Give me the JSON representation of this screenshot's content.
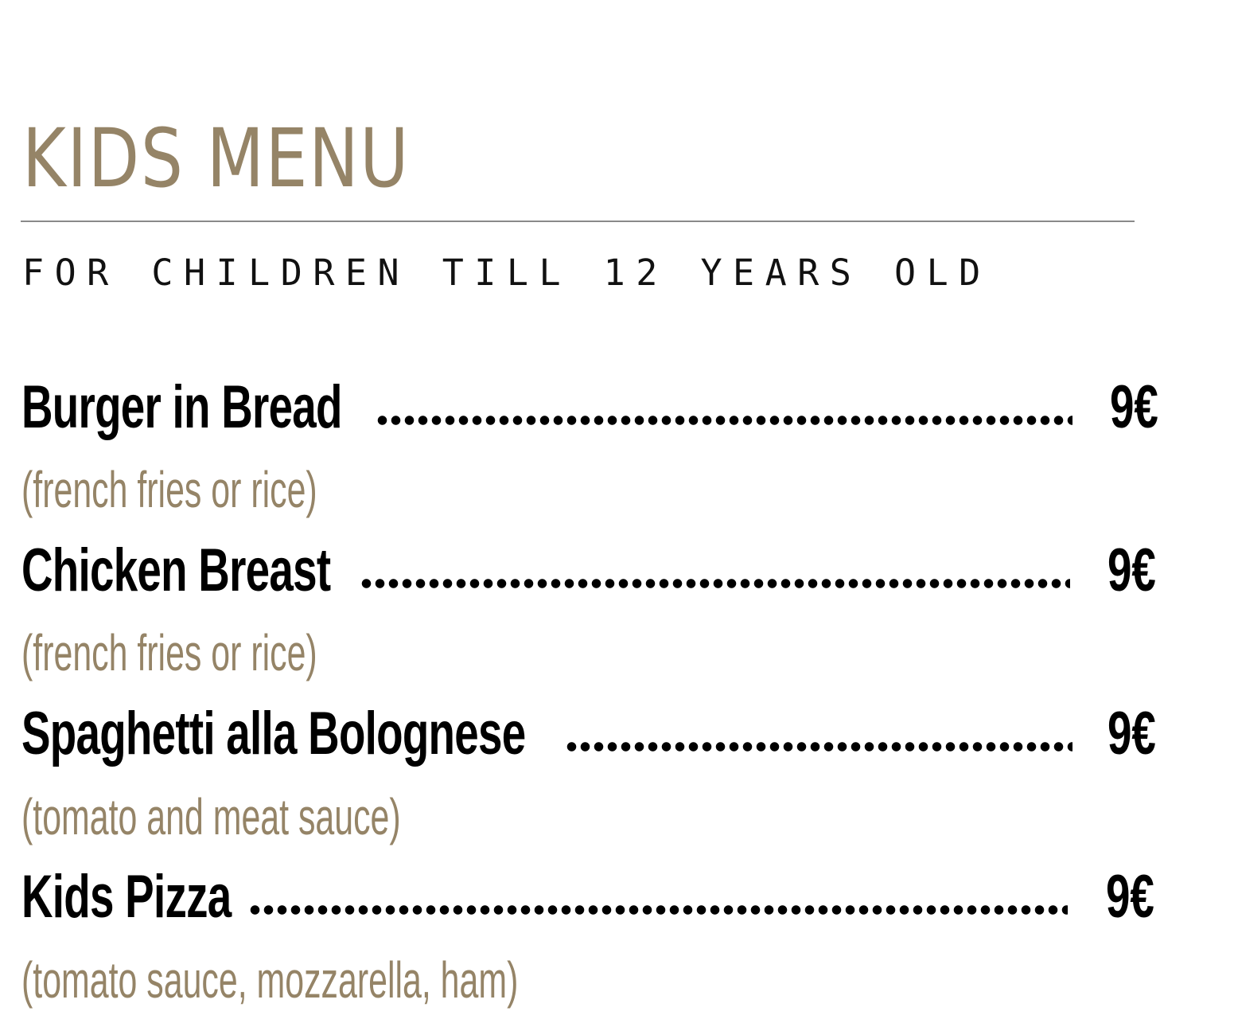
{
  "menu": {
    "title": "KIDS MENU",
    "subtitle": "FOR CHILDREN TILL 12 YEARS OLD",
    "accent_color": "#958467",
    "items": [
      {
        "name": "Burger in Bread",
        "price": "9€",
        "description": "(french fries or rice)"
      },
      {
        "name": "Chicken Breast",
        "price": "9€",
        "description": "(french fries or rice)"
      },
      {
        "name": "Spaghetti alla Bolognese",
        "price": "9€",
        "description": "(tomato and meat sauce)"
      },
      {
        "name": "Kids Pizza",
        "price": "9€",
        "description": "(tomato sauce, mozzarella, ham)"
      }
    ]
  }
}
